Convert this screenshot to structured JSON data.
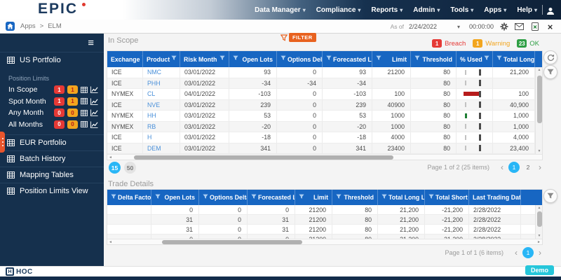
{
  "topbar": {
    "logo": "EPIC",
    "menus": [
      "Data Manager",
      "Compliance",
      "Reports",
      "Admin",
      "Tools",
      "Apps",
      "Help"
    ]
  },
  "breadcrumb": {
    "items": [
      "Apps",
      "ELM"
    ],
    "separator": ">"
  },
  "asof": {
    "label": "As of",
    "date": "2/24/2022",
    "time": "00:00:00"
  },
  "sidebar": {
    "us_portfolio": "US Portfolio",
    "position_limits_label": "Position Limits",
    "limit_rows": [
      {
        "label": "In Scope",
        "breach": "1",
        "warning": "1"
      },
      {
        "label": "Spot Month",
        "breach": "1",
        "warning": "1"
      },
      {
        "label": "Any Month",
        "breach": "0",
        "warning": "0"
      },
      {
        "label": "All Months",
        "breach": "0",
        "warning": "0"
      }
    ],
    "items_below": [
      "EUR Portfolio",
      "Batch History",
      "Mapping Tables",
      "Position Limits View"
    ]
  },
  "in_scope": {
    "title": "In Scope",
    "filter_label": "FILTER",
    "status": [
      {
        "count": "1",
        "label": "Breach",
        "color": "#e53935"
      },
      {
        "count": "1",
        "label": "Warning",
        "color": "#f2a51e"
      },
      {
        "count": "23",
        "label": "OK",
        "color": "#2e9e44"
      }
    ],
    "columns": [
      "Exchange",
      "Product",
      "Risk Month",
      "Open Lots",
      "Options Delta",
      "Forecasted Lots",
      "Limit",
      "Threshold",
      "% Used",
      "Total Long Limit"
    ],
    "rows": [
      [
        "ICE",
        "NMC",
        "03/01/2022",
        "93",
        "0",
        "93",
        "21200",
        "80",
        "",
        "21,200"
      ],
      [
        "ICE",
        "PHH",
        "03/01/2022",
        "-34",
        "-34",
        "-34",
        "",
        "80",
        "",
        ""
      ],
      [
        "NYMEX",
        "CL",
        "04/01/2022",
        "-103",
        "0",
        "-103",
        "100",
        "80",
        "breach",
        "100"
      ],
      [
        "ICE",
        "NVE",
        "03/01/2022",
        "239",
        "0",
        "239",
        "40900",
        "80",
        "",
        "40,900"
      ],
      [
        "NYMEX",
        "HH",
        "03/01/2022",
        "53",
        "0",
        "53",
        "1000",
        "80",
        "ok",
        "1,000"
      ],
      [
        "NYMEX",
        "RB",
        "03/01/2022",
        "-20",
        "0",
        "-20",
        "1000",
        "80",
        "",
        "1,000"
      ],
      [
        "ICE",
        "H",
        "03/01/2022",
        "-18",
        "0",
        "-18",
        "4000",
        "80",
        "",
        "4,000"
      ],
      [
        "ICE",
        "DEM",
        "03/01/2022",
        "341",
        "0",
        "341",
        "23400",
        "80",
        "",
        "23,400"
      ]
    ],
    "page_sizes": [
      "15",
      "50"
    ],
    "active_size": "15",
    "pager": {
      "info": "Page 1 of 2 (25 items)",
      "pages": [
        "1",
        "2"
      ],
      "active": "1"
    }
  },
  "trade_details": {
    "title": "Trade Details",
    "columns": [
      "Delta Factor",
      "Open Lots",
      "Options Delta",
      "Forecasted Lots",
      "Limit",
      "Threshold",
      "Total Long Limit",
      "Total Short Limit",
      "Last Trading Date"
    ],
    "rows": [
      [
        "",
        "0",
        "0",
        "0",
        "21200",
        "80",
        "21,200",
        "-21,200",
        "2/28/2022"
      ],
      [
        "",
        "31",
        "0",
        "31",
        "21200",
        "80",
        "21,200",
        "-21,200",
        "2/28/2022"
      ],
      [
        "",
        "31",
        "0",
        "31",
        "21200",
        "80",
        "21,200",
        "-21,200",
        "2/28/2022"
      ],
      [
        "",
        "0",
        "0",
        "0",
        "21200",
        "80",
        "21,200",
        "-21,200",
        "2/28/2022"
      ]
    ],
    "pager": {
      "info": "Page 1 of 1 (6 items)",
      "pages": [
        "1"
      ],
      "active": "1"
    }
  },
  "footer": {
    "logo_h": "H",
    "logo_text": "HOC",
    "demo_label": "Demo"
  },
  "colors": {
    "header_blue": "#1766c2",
    "navy": "#15304d",
    "breach": "#e53935",
    "warning": "#f2a51e",
    "ok": "#2e9e44",
    "active_page": "#29b6f6",
    "link": "#4a90d9",
    "filter_orange": "#e8621f",
    "demo": "#26c6da"
  }
}
